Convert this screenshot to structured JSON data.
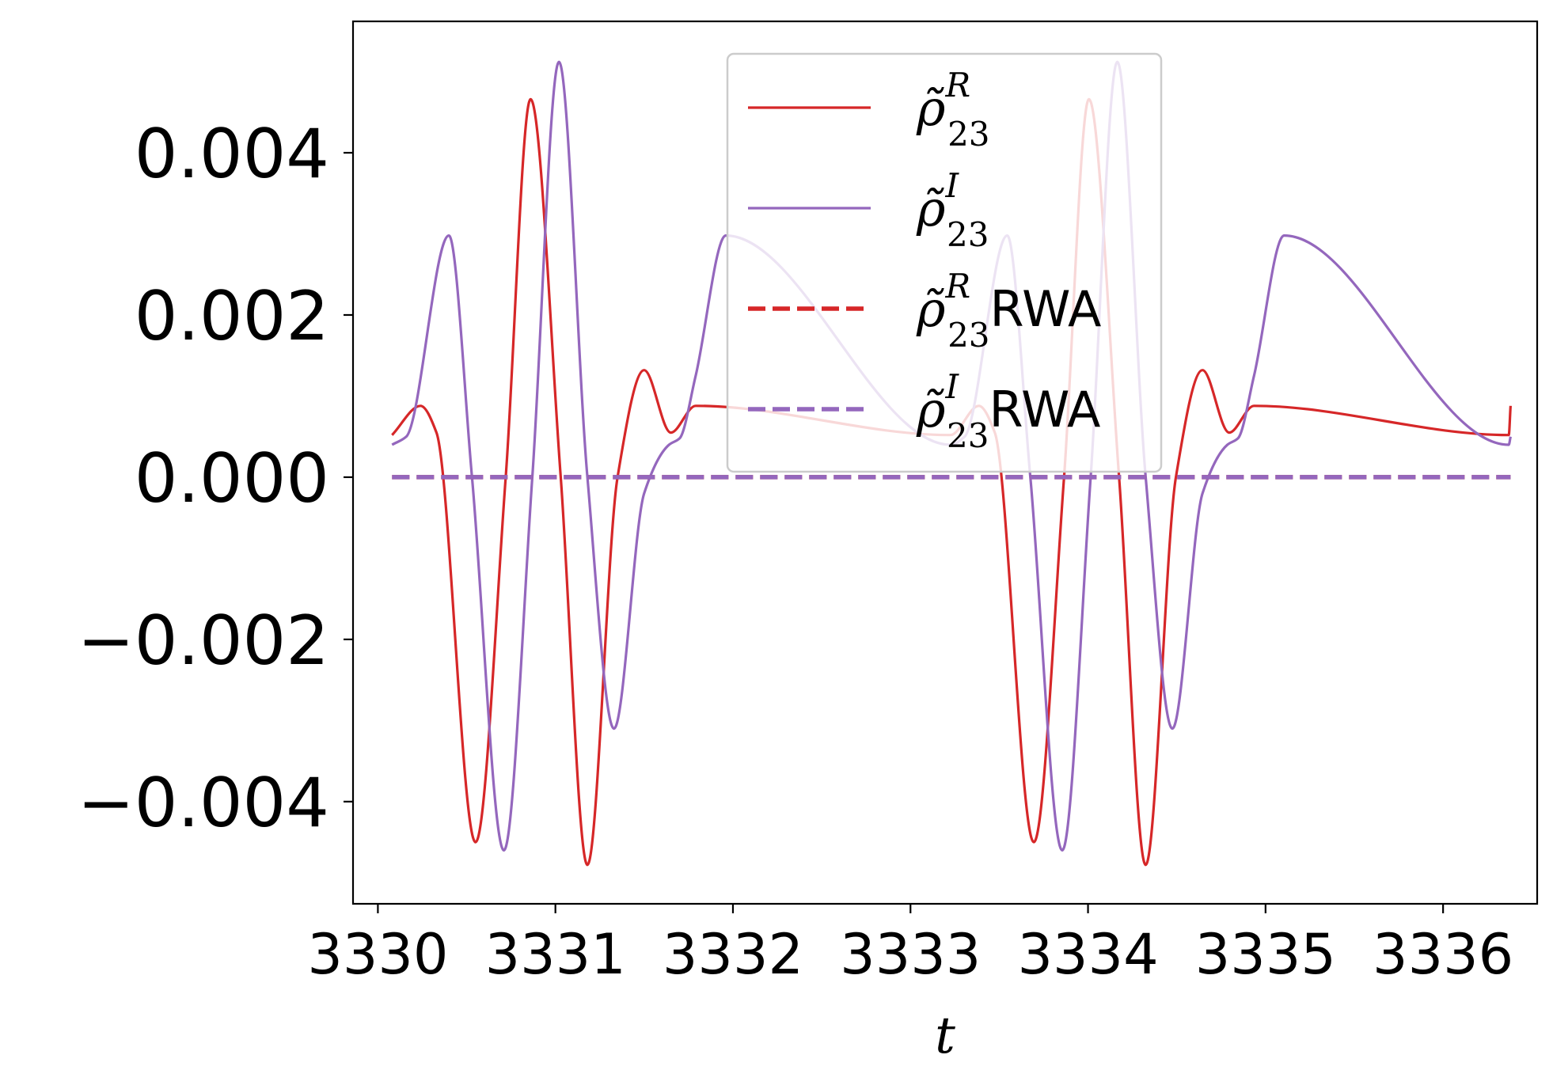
{
  "chart_data": {
    "type": "line",
    "xlabel": "t",
    "ylabel": "",
    "xlim": [
      3329.86,
      3336.53
    ],
    "ylim": [
      -0.00526,
      0.00562
    ],
    "xticks": [
      3330,
      3331,
      3332,
      3333,
      3334,
      3335,
      3336
    ],
    "xtick_labels": [
      "3330",
      "3331",
      "3332",
      "3333",
      "3334",
      "3335",
      "3336"
    ],
    "yticks": [
      -0.004,
      -0.002,
      0.0,
      0.002,
      0.004
    ],
    "ytick_labels": [
      "−0.004",
      "−0.002",
      "0.000",
      "0.002",
      "0.004"
    ],
    "grid": false,
    "legend_position": "top-center",
    "x_start": 3330.08,
    "x_end": 3336.38,
    "period": 3.145,
    "series": [
      {
        "name": "ρ̃₂₃ᴿ",
        "legend_main": "ρ̃",
        "legend_sup": "R",
        "legend_sub": "23",
        "legend_suffix": "",
        "color": "#d62728",
        "style": "solid",
        "keypoints": [
          [
            3330.08,
            0.00052
          ],
          [
            3330.24,
            0.00088
          ],
          [
            3330.33,
            0.00055
          ],
          [
            3330.55,
            -0.0045
          ],
          [
            3330.72,
            0.0
          ],
          [
            3330.86,
            0.00466
          ],
          [
            3331.03,
            0.0
          ],
          [
            3331.18,
            -0.00478
          ],
          [
            3331.35,
            0.0
          ],
          [
            3331.5,
            0.00132
          ],
          [
            3331.65,
            0.00055
          ],
          [
            3331.79,
            0.00088
          ]
        ]
      },
      {
        "name": "ρ̃₂₃ᴵ",
        "legend_main": "ρ̃",
        "legend_sup": "I",
        "legend_sub": "23",
        "legend_suffix": "",
        "color": "#9467bd",
        "style": "solid",
        "keypoints": [
          [
            3330.08,
            0.0004
          ],
          [
            3330.16,
            0.0005
          ],
          [
            3330.4,
            0.00298
          ],
          [
            3330.53,
            0.0
          ],
          [
            3330.71,
            -0.0046
          ],
          [
            3330.87,
            0.0
          ],
          [
            3331.02,
            0.00512
          ],
          [
            3331.18,
            0.0
          ],
          [
            3331.33,
            -0.0031
          ],
          [
            3331.5,
            -0.0002
          ],
          [
            3331.64,
            0.0004
          ],
          [
            3331.7,
            0.00048
          ],
          [
            3331.79,
            0.00125
          ],
          [
            3331.96,
            0.00298
          ]
        ]
      },
      {
        "name": "ρ̃₂₃ᴿ RWA",
        "legend_main": "ρ̃",
        "legend_sup": "R",
        "legend_sub": "23",
        "legend_suffix": "RWA",
        "color": "#d62728",
        "style": "dashed",
        "keypoints": [
          [
            3330.08,
            0.0
          ],
          [
            3336.38,
            0.0
          ]
        ]
      },
      {
        "name": "ρ̃₂₃ᴵ RWA",
        "legend_main": "ρ̃",
        "legend_sup": "I",
        "legend_sub": "23",
        "legend_suffix": "RWA",
        "color": "#9467bd",
        "style": "dashed",
        "keypoints": [
          [
            3330.08,
            0.0
          ],
          [
            3336.38,
            0.0
          ]
        ]
      }
    ]
  }
}
